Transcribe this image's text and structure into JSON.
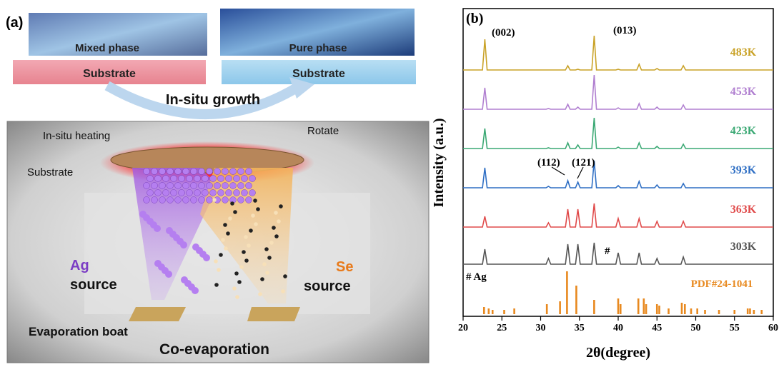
{
  "panel_a": {
    "label": "(a)",
    "mixed": "Mixed phase",
    "pure": "Pure phase",
    "substrate_left": "Substrate",
    "substrate_right": "Substrate",
    "growth": "In-situ growth",
    "heating": "In-situ heating",
    "rotate": "Rotate",
    "substrate": "Substrate",
    "ag": "Ag",
    "ag_source": "source",
    "se": "Se",
    "se_source": "source",
    "boat": "Evaporation boat",
    "coevap": "Co-evaporation"
  },
  "chart_data": {
    "type": "line",
    "panel_label": "(b)",
    "x_label": "2θ(degree)",
    "y_label": "Intensity (a.u.)",
    "x": [
      20,
      22.5,
      22.8,
      23.1,
      30.7,
      31.0,
      31.3,
      33.2,
      33.5,
      33.8,
      34.5,
      34.8,
      35.1,
      36.6,
      36.9,
      37.2,
      39.7,
      40.0,
      40.3,
      42.4,
      42.7,
      43.0,
      44.7,
      45.0,
      45.3,
      48.1,
      48.4,
      48.7,
      60
    ],
    "series": [
      {
        "name": "483K",
        "color": "#c9a227",
        "values": [
          2,
          2,
          45,
          2,
          2,
          2,
          2,
          2,
          8,
          2,
          2,
          3,
          2,
          2,
          50,
          2,
          2,
          3,
          2,
          2,
          10,
          2,
          2,
          4,
          2,
          2,
          8,
          2,
          2
        ]
      },
      {
        "name": "453K",
        "color": "#b07fd0",
        "values": [
          2,
          2,
          32,
          2,
          2,
          3,
          2,
          2,
          9,
          2,
          2,
          5,
          2,
          2,
          50,
          2,
          2,
          4,
          2,
          2,
          10,
          2,
          2,
          5,
          2,
          2,
          8,
          2,
          2
        ]
      },
      {
        "name": "423K",
        "color": "#3aa873",
        "values": [
          2,
          2,
          30,
          2,
          2,
          3,
          2,
          2,
          10,
          2,
          2,
          7,
          2,
          2,
          45,
          2,
          2,
          4,
          2,
          2,
          10,
          2,
          2,
          5,
          2,
          2,
          8,
          2,
          2
        ]
      },
      {
        "name": "393K",
        "color": "#2f6fc4",
        "values": [
          2,
          2,
          30,
          2,
          2,
          4,
          2,
          2,
          12,
          2,
          2,
          10,
          2,
          2,
          40,
          2,
          2,
          5,
          2,
          2,
          11,
          2,
          2,
          6,
          2,
          2,
          8,
          2,
          2
        ]
      },
      {
        "name": "363K",
        "color": "#e04a4a",
        "values": [
          2,
          2,
          17,
          2,
          2,
          8,
          2,
          2,
          27,
          2,
          2,
          27,
          2,
          2,
          35,
          2,
          2,
          14,
          2,
          2,
          14,
          2,
          2,
          10,
          2,
          2,
          10,
          2,
          2
        ]
      },
      {
        "name": "303K",
        "color": "#555555",
        "values": [
          2,
          2,
          23,
          2,
          2,
          10,
          2,
          2,
          30,
          2,
          2,
          30,
          2,
          2,
          32,
          2,
          2,
          18,
          2,
          2,
          18,
          2,
          2,
          10,
          2,
          2,
          12,
          2,
          2
        ]
      }
    ],
    "reference": {
      "name": "PDF#24-1041",
      "color": "#e8891f",
      "x": [
        22.7,
        23.3,
        23.8,
        25.3,
        26.6,
        30.8,
        32.5,
        33.4,
        34.6,
        36.9,
        40.0,
        40.3,
        42.6,
        43.3,
        43.6,
        45.0,
        45.3,
        46.5,
        48.2,
        48.6,
        49.4,
        50.2,
        51.2,
        53.0,
        55.0,
        56.7,
        57.0,
        57.5,
        58.5
      ],
      "values": [
        10,
        8,
        6,
        6,
        8,
        14,
        18,
        60,
        40,
        20,
        22,
        14,
        22,
        22,
        14,
        14,
        12,
        8,
        16,
        14,
        8,
        8,
        6,
        6,
        6,
        8,
        8,
        6,
        6
      ]
    },
    "annotations": [
      "(002)",
      "(013)",
      "(112)",
      "(121)",
      "#",
      "# Ag"
    ],
    "xlim": [
      20,
      60
    ],
    "xticks": [
      20,
      25,
      30,
      35,
      40,
      45,
      50,
      55,
      60
    ]
  }
}
